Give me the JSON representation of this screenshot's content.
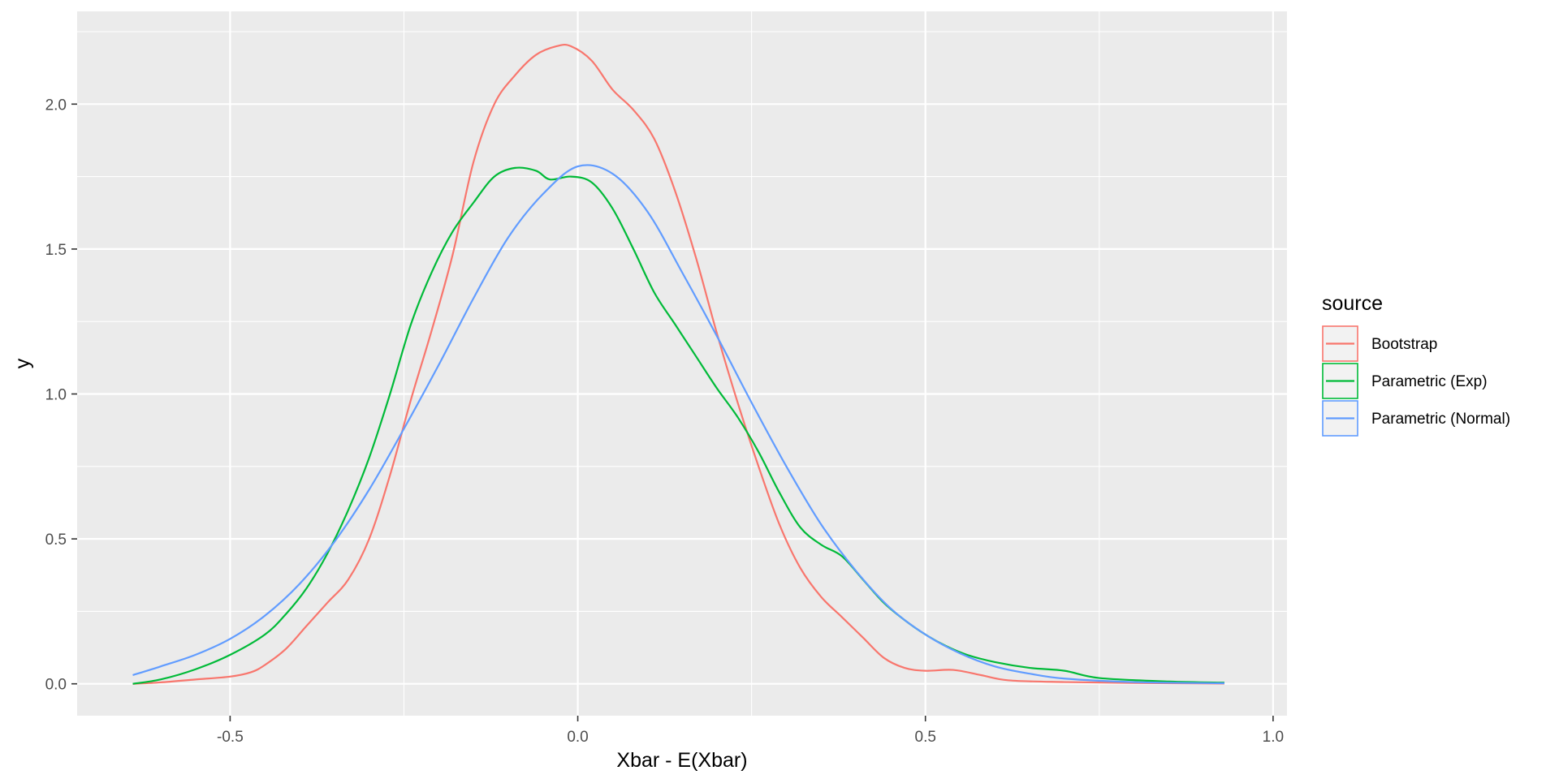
{
  "chart_data": {
    "type": "line",
    "xlabel": "Xbar - E(Xbar)",
    "ylabel": "y",
    "xlim": [
      -0.72,
      1.02
    ],
    "ylim": [
      -0.11,
      2.32
    ],
    "x_ticks": [
      -0.5,
      0.0,
      0.5,
      1.0
    ],
    "x_tick_labels": [
      "-0.5",
      "0.0",
      "0.5",
      "1.0"
    ],
    "y_ticks": [
      0.0,
      0.5,
      1.0,
      1.5,
      2.0
    ],
    "y_tick_labels": [
      "0.0",
      "0.5",
      "1.0",
      "1.5",
      "2.0"
    ],
    "grid": true,
    "legend": {
      "title": "source",
      "placement": "right"
    },
    "series": [
      {
        "name": "Bootstrap",
        "color": "#F8766D",
        "points": [
          [
            -0.64,
            0.0
          ],
          [
            -0.6,
            0.005
          ],
          [
            -0.55,
            0.015
          ],
          [
            -0.5,
            0.025
          ],
          [
            -0.47,
            0.04
          ],
          [
            -0.45,
            0.065
          ],
          [
            -0.42,
            0.12
          ],
          [
            -0.39,
            0.2
          ],
          [
            -0.36,
            0.28
          ],
          [
            -0.33,
            0.36
          ],
          [
            -0.3,
            0.5
          ],
          [
            -0.27,
            0.72
          ],
          [
            -0.24,
            0.98
          ],
          [
            -0.21,
            1.22
          ],
          [
            -0.18,
            1.48
          ],
          [
            -0.15,
            1.8
          ],
          [
            -0.12,
            2.0
          ],
          [
            -0.09,
            2.1
          ],
          [
            -0.06,
            2.17
          ],
          [
            -0.03,
            2.2
          ],
          [
            -0.01,
            2.2
          ],
          [
            0.02,
            2.15
          ],
          [
            0.05,
            2.05
          ],
          [
            0.08,
            1.98
          ],
          [
            0.11,
            1.88
          ],
          [
            0.14,
            1.7
          ],
          [
            0.17,
            1.47
          ],
          [
            0.2,
            1.21
          ],
          [
            0.23,
            0.97
          ],
          [
            0.26,
            0.75
          ],
          [
            0.29,
            0.55
          ],
          [
            0.32,
            0.4
          ],
          [
            0.35,
            0.3
          ],
          [
            0.38,
            0.23
          ],
          [
            0.41,
            0.16
          ],
          [
            0.44,
            0.09
          ],
          [
            0.47,
            0.055
          ],
          [
            0.5,
            0.045
          ],
          [
            0.54,
            0.048
          ],
          [
            0.58,
            0.03
          ],
          [
            0.62,
            0.012
          ],
          [
            0.7,
            0.006
          ],
          [
            0.8,
            0.003
          ],
          [
            0.93,
            0.001
          ]
        ]
      },
      {
        "name": "Parametric (Exp)",
        "color": "#00BA38",
        "points": [
          [
            -0.64,
            0.0
          ],
          [
            -0.6,
            0.015
          ],
          [
            -0.55,
            0.05
          ],
          [
            -0.5,
            0.1
          ],
          [
            -0.45,
            0.17
          ],
          [
            -0.42,
            0.24
          ],
          [
            -0.39,
            0.33
          ],
          [
            -0.36,
            0.45
          ],
          [
            -0.33,
            0.6
          ],
          [
            -0.3,
            0.78
          ],
          [
            -0.27,
            1.0
          ],
          [
            -0.24,
            1.24
          ],
          [
            -0.21,
            1.42
          ],
          [
            -0.18,
            1.56
          ],
          [
            -0.15,
            1.66
          ],
          [
            -0.12,
            1.75
          ],
          [
            -0.09,
            1.78
          ],
          [
            -0.06,
            1.77
          ],
          [
            -0.04,
            1.74
          ],
          [
            -0.01,
            1.75
          ],
          [
            0.02,
            1.73
          ],
          [
            0.05,
            1.64
          ],
          [
            0.08,
            1.5
          ],
          [
            0.11,
            1.35
          ],
          [
            0.14,
            1.24
          ],
          [
            0.17,
            1.13
          ],
          [
            0.2,
            1.02
          ],
          [
            0.23,
            0.92
          ],
          [
            0.26,
            0.8
          ],
          [
            0.29,
            0.66
          ],
          [
            0.32,
            0.54
          ],
          [
            0.35,
            0.48
          ],
          [
            0.38,
            0.44
          ],
          [
            0.41,
            0.36
          ],
          [
            0.44,
            0.28
          ],
          [
            0.47,
            0.22
          ],
          [
            0.5,
            0.17
          ],
          [
            0.53,
            0.13
          ],
          [
            0.56,
            0.1
          ],
          [
            0.6,
            0.075
          ],
          [
            0.65,
            0.055
          ],
          [
            0.7,
            0.045
          ],
          [
            0.75,
            0.02
          ],
          [
            0.85,
            0.008
          ],
          [
            0.93,
            0.004
          ]
        ]
      },
      {
        "name": "Parametric (Normal)",
        "color": "#619CFF",
        "points": [
          [
            -0.64,
            0.03
          ],
          [
            -0.6,
            0.06
          ],
          [
            -0.55,
            0.1
          ],
          [
            -0.5,
            0.155
          ],
          [
            -0.45,
            0.235
          ],
          [
            -0.4,
            0.345
          ],
          [
            -0.35,
            0.49
          ],
          [
            -0.3,
            0.67
          ],
          [
            -0.25,
            0.88
          ],
          [
            -0.2,
            1.1
          ],
          [
            -0.15,
            1.33
          ],
          [
            -0.1,
            1.54
          ],
          [
            -0.05,
            1.69
          ],
          [
            0.0,
            1.785
          ],
          [
            0.05,
            1.76
          ],
          [
            0.1,
            1.63
          ],
          [
            0.15,
            1.42
          ],
          [
            0.2,
            1.2
          ],
          [
            0.25,
            0.97
          ],
          [
            0.3,
            0.75
          ],
          [
            0.35,
            0.55
          ],
          [
            0.4,
            0.39
          ],
          [
            0.45,
            0.26
          ],
          [
            0.5,
            0.17
          ],
          [
            0.55,
            0.105
          ],
          [
            0.6,
            0.06
          ],
          [
            0.65,
            0.035
          ],
          [
            0.7,
            0.018
          ],
          [
            0.8,
            0.006
          ],
          [
            0.93,
            0.002
          ]
        ]
      }
    ]
  }
}
